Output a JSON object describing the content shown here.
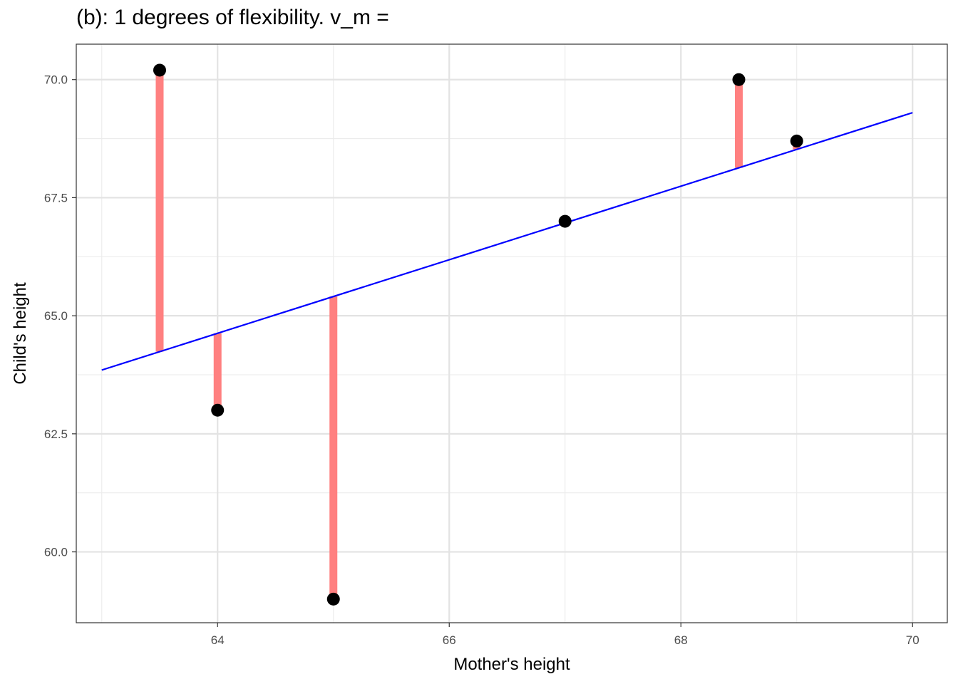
{
  "chart_data": {
    "type": "scatter",
    "title": "(b): 1 degrees of flexibility. v_m =",
    "xlabel": "Mother's height",
    "ylabel": "Child's height",
    "xlim": [
      62.78,
      70.3
    ],
    "ylim": [
      58.5,
      70.75
    ],
    "x_ticks": [
      64,
      66,
      68,
      70
    ],
    "x_tick_labels": [
      "64",
      "66",
      "68",
      "70"
    ],
    "x_minor_ticks": [
      63,
      65,
      67,
      69
    ],
    "y_ticks": [
      60.0,
      62.5,
      65.0,
      67.5,
      70.0
    ],
    "y_tick_labels": [
      "60.0",
      "62.5",
      "65.0",
      "67.5",
      "70.0"
    ],
    "y_minor_ticks": [
      61.25,
      63.75,
      66.25,
      68.75
    ],
    "grid": true,
    "points": [
      {
        "x": 63.5,
        "y": 70.2
      },
      {
        "x": 64.0,
        "y": 63.0
      },
      {
        "x": 65.0,
        "y": 59.0
      },
      {
        "x": 67.0,
        "y": 67.0
      },
      {
        "x": 68.5,
        "y": 70.0
      },
      {
        "x": 69.0,
        "y": 68.7
      }
    ],
    "fit_line": {
      "x": [
        63.0,
        70.0
      ],
      "y": [
        63.85,
        69.3
      ],
      "color": "#0000ff"
    },
    "residual_color": "#ff8080",
    "point_color": "#000000"
  }
}
